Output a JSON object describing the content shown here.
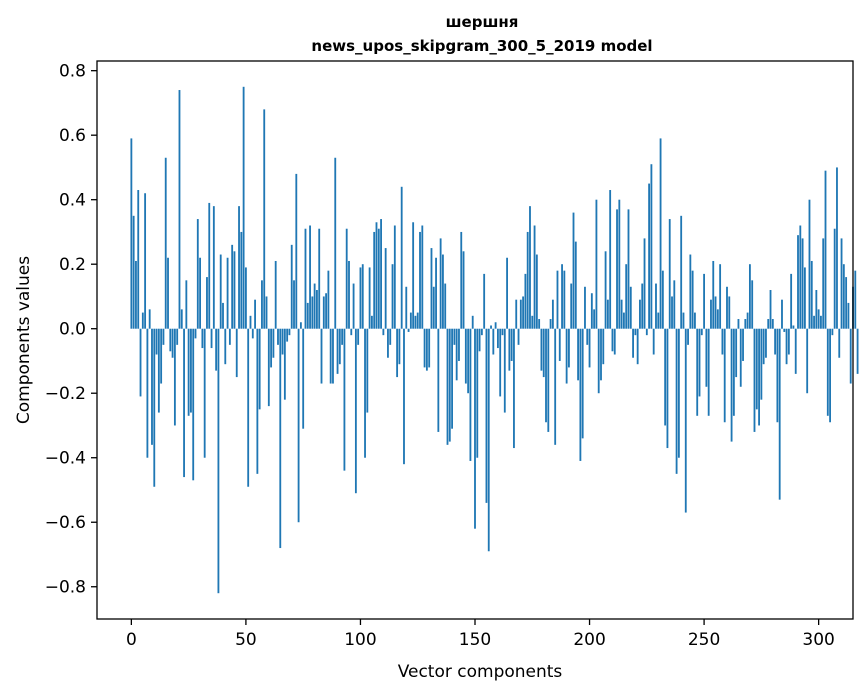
{
  "chart_data": {
    "type": "bar",
    "title": "шершня",
    "subtitle": "news_upos_skipgram_300_5_2019 model",
    "xlabel": "Vector components",
    "ylabel": "Components values",
    "xlim": [
      -15,
      315
    ],
    "ylim": [
      -0.9,
      0.83
    ],
    "xticks": [
      0,
      50,
      100,
      150,
      200,
      250,
      300
    ],
    "yticks": [
      -0.8,
      -0.6,
      -0.4,
      -0.2,
      0.0,
      0.2,
      0.4,
      0.6,
      0.8
    ],
    "ytick_labels": [
      "−0.8",
      "−0.6",
      "−0.4",
      "−0.2",
      "0.0",
      "0.2",
      "0.4",
      "0.6",
      "0.8"
    ],
    "bar_color": "#1f77b4",
    "values": [
      0.59,
      0.35,
      0.21,
      0.43,
      -0.21,
      0.05,
      0.42,
      -0.4,
      0.06,
      -0.36,
      -0.49,
      -0.08,
      -0.26,
      -0.17,
      -0.05,
      0.53,
      0.22,
      -0.07,
      -0.09,
      -0.3,
      -0.05,
      0.74,
      0.06,
      -0.46,
      0.15,
      -0.27,
      -0.26,
      -0.47,
      -0.03,
      0.34,
      0.22,
      -0.06,
      -0.4,
      0.16,
      0.39,
      -0.06,
      0.38,
      -0.13,
      -0.82,
      0.23,
      0.08,
      -0.11,
      0.22,
      -0.05,
      0.26,
      0.24,
      -0.15,
      0.38,
      0.3,
      0.75,
      0.19,
      -0.49,
      0.04,
      -0.03,
      0.09,
      -0.45,
      -0.25,
      0.15,
      0.68,
      0.1,
      -0.24,
      -0.12,
      -0.09,
      0.21,
      -0.05,
      -0.68,
      -0.08,
      -0.22,
      -0.04,
      -0.02,
      0.26,
      0.15,
      0.48,
      -0.6,
      0.02,
      -0.31,
      0.31,
      0.08,
      0.32,
      0.1,
      0.14,
      0.12,
      0.31,
      -0.17,
      0.1,
      0.11,
      0.18,
      -0.17,
      -0.17,
      0.53,
      -0.14,
      -0.11,
      -0.05,
      -0.44,
      0.31,
      0.21,
      -0.02,
      0.14,
      -0.51,
      -0.05,
      0.19,
      0.2,
      -0.4,
      -0.26,
      0.19,
      0.04,
      0.3,
      0.33,
      0.31,
      0.34,
      -0.02,
      0.25,
      -0.09,
      -0.05,
      0.2,
      0.32,
      -0.15,
      -0.11,
      0.44,
      -0.42,
      0.13,
      -0.01,
      0.05,
      0.33,
      0.04,
      0.05,
      0.3,
      0.32,
      -0.12,
      -0.13,
      -0.12,
      0.25,
      0.13,
      0.22,
      -0.32,
      0.28,
      0.23,
      0.14,
      -0.36,
      -0.35,
      -0.31,
      -0.05,
      -0.16,
      -0.1,
      0.3,
      0.24,
      -0.17,
      -0.2,
      -0.41,
      0.04,
      -0.62,
      -0.4,
      -0.07,
      -0.02,
      0.17,
      -0.54,
      -0.69,
      0.01,
      -0.08,
      0.02,
      -0.06,
      -0.21,
      -0.02,
      -0.26,
      0.22,
      -0.13,
      -0.1,
      -0.37,
      0.09,
      -0.05,
      0.09,
      0.1,
      0.17,
      0.3,
      0.38,
      0.04,
      0.32,
      0.23,
      0.03,
      -0.13,
      -0.15,
      -0.29,
      -0.32,
      0.03,
      0.09,
      -0.36,
      0.18,
      -0.1,
      0.2,
      0.18,
      -0.17,
      -0.12,
      0.14,
      0.36,
      0.27,
      -0.16,
      -0.41,
      -0.34,
      0.13,
      -0.05,
      -0.12,
      0.11,
      0.06,
      0.4,
      -0.2,
      -0.16,
      -0.11,
      0.24,
      0.09,
      0.43,
      -0.07,
      -0.08,
      0.37,
      0.4,
      0.09,
      0.05,
      0.2,
      0.37,
      0.13,
      -0.09,
      -0.02,
      -0.11,
      0.09,
      0.14,
      0.28,
      -0.02,
      0.45,
      0.51,
      -0.08,
      0.14,
      0.05,
      0.59,
      0.18,
      -0.3,
      -0.37,
      0.34,
      0.1,
      0.15,
      -0.45,
      -0.4,
      0.35,
      0.05,
      -0.57,
      -0.05,
      0.23,
      0.18,
      0.05,
      -0.27,
      -0.21,
      -0.02,
      0.17,
      -0.18,
      -0.27,
      0.09,
      0.21,
      0.1,
      0.06,
      0.2,
      -0.08,
      -0.29,
      0.13,
      0.1,
      -0.35,
      -0.27,
      -0.15,
      0.03,
      -0.18,
      -0.1,
      0.03,
      0.05,
      0.2,
      0.15,
      -0.32,
      -0.25,
      -0.3,
      -0.22,
      -0.11,
      -0.09,
      0.03,
      0.12,
      0.03,
      -0.08,
      -0.29,
      -0.53,
      0.09,
      -0.01,
      -0.11,
      -0.08,
      0.17,
      0.01,
      -0.14,
      0.29,
      0.32,
      0.28,
      0.19,
      -0.2,
      0.4,
      0.21,
      0.04,
      0.12,
      0.06,
      0.04,
      0.28,
      0.49,
      -0.27,
      -0.29,
      -0.02,
      0.31,
      0.5,
      -0.09,
      0.28,
      0.2,
      0.16,
      0.08,
      -0.17,
      0.13,
      0.18,
      -0.14
    ]
  }
}
